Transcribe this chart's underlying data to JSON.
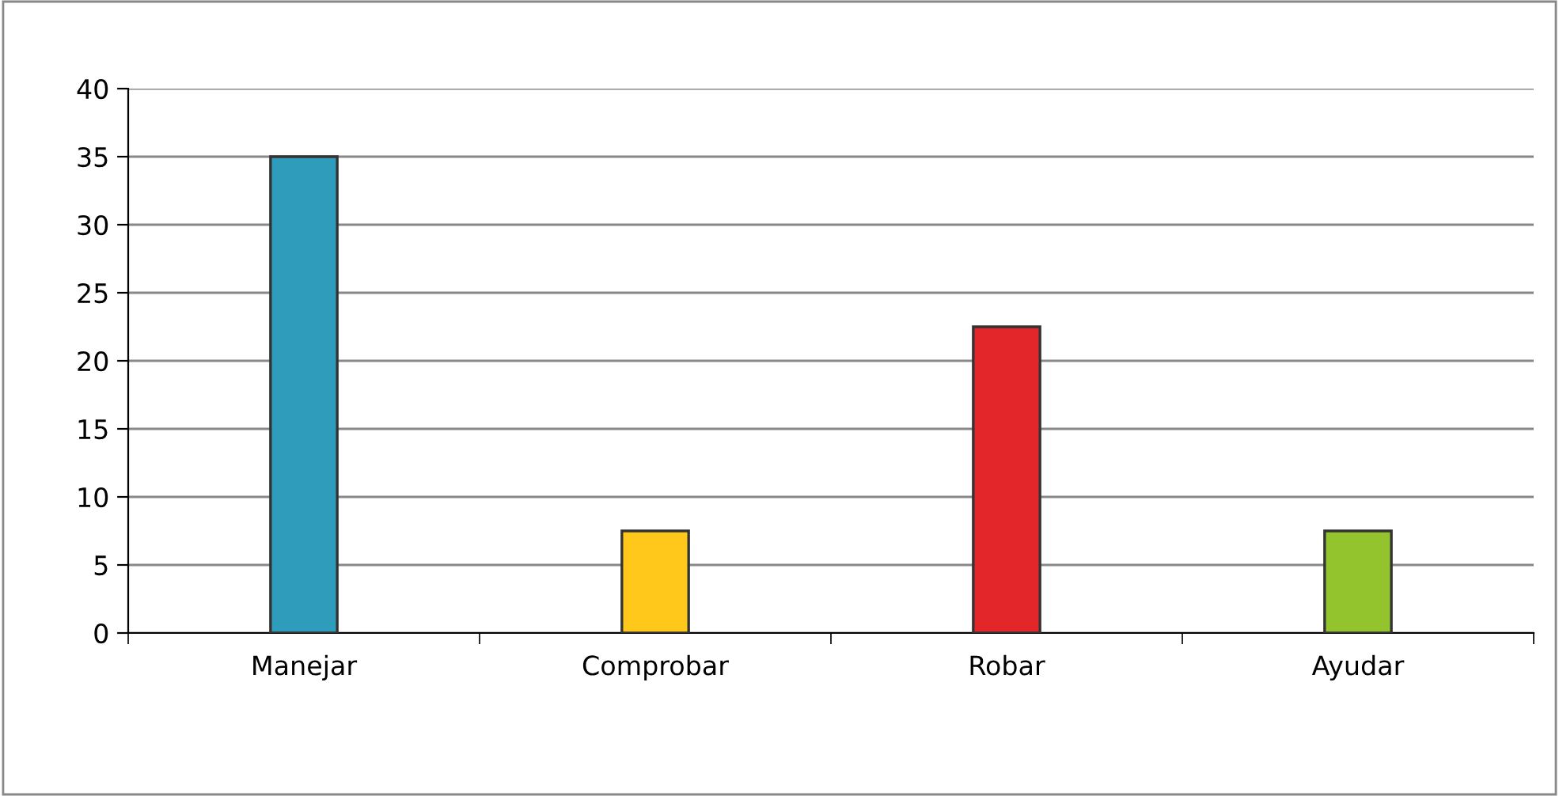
{
  "chart_data": {
    "type": "bar",
    "categories": [
      "Manejar",
      "Comprobar",
      "Robar",
      "Ayudar"
    ],
    "values": [
      35,
      7.5,
      22.5,
      7.5
    ],
    "colors": [
      "#2f9cbc",
      "#ffc81a",
      "#e3262a",
      "#93c42e"
    ],
    "ylim": [
      0,
      40
    ],
    "yticks": [
      0,
      5,
      10,
      15,
      20,
      25,
      30,
      35,
      40
    ],
    "grid": "y",
    "legend": false
  }
}
